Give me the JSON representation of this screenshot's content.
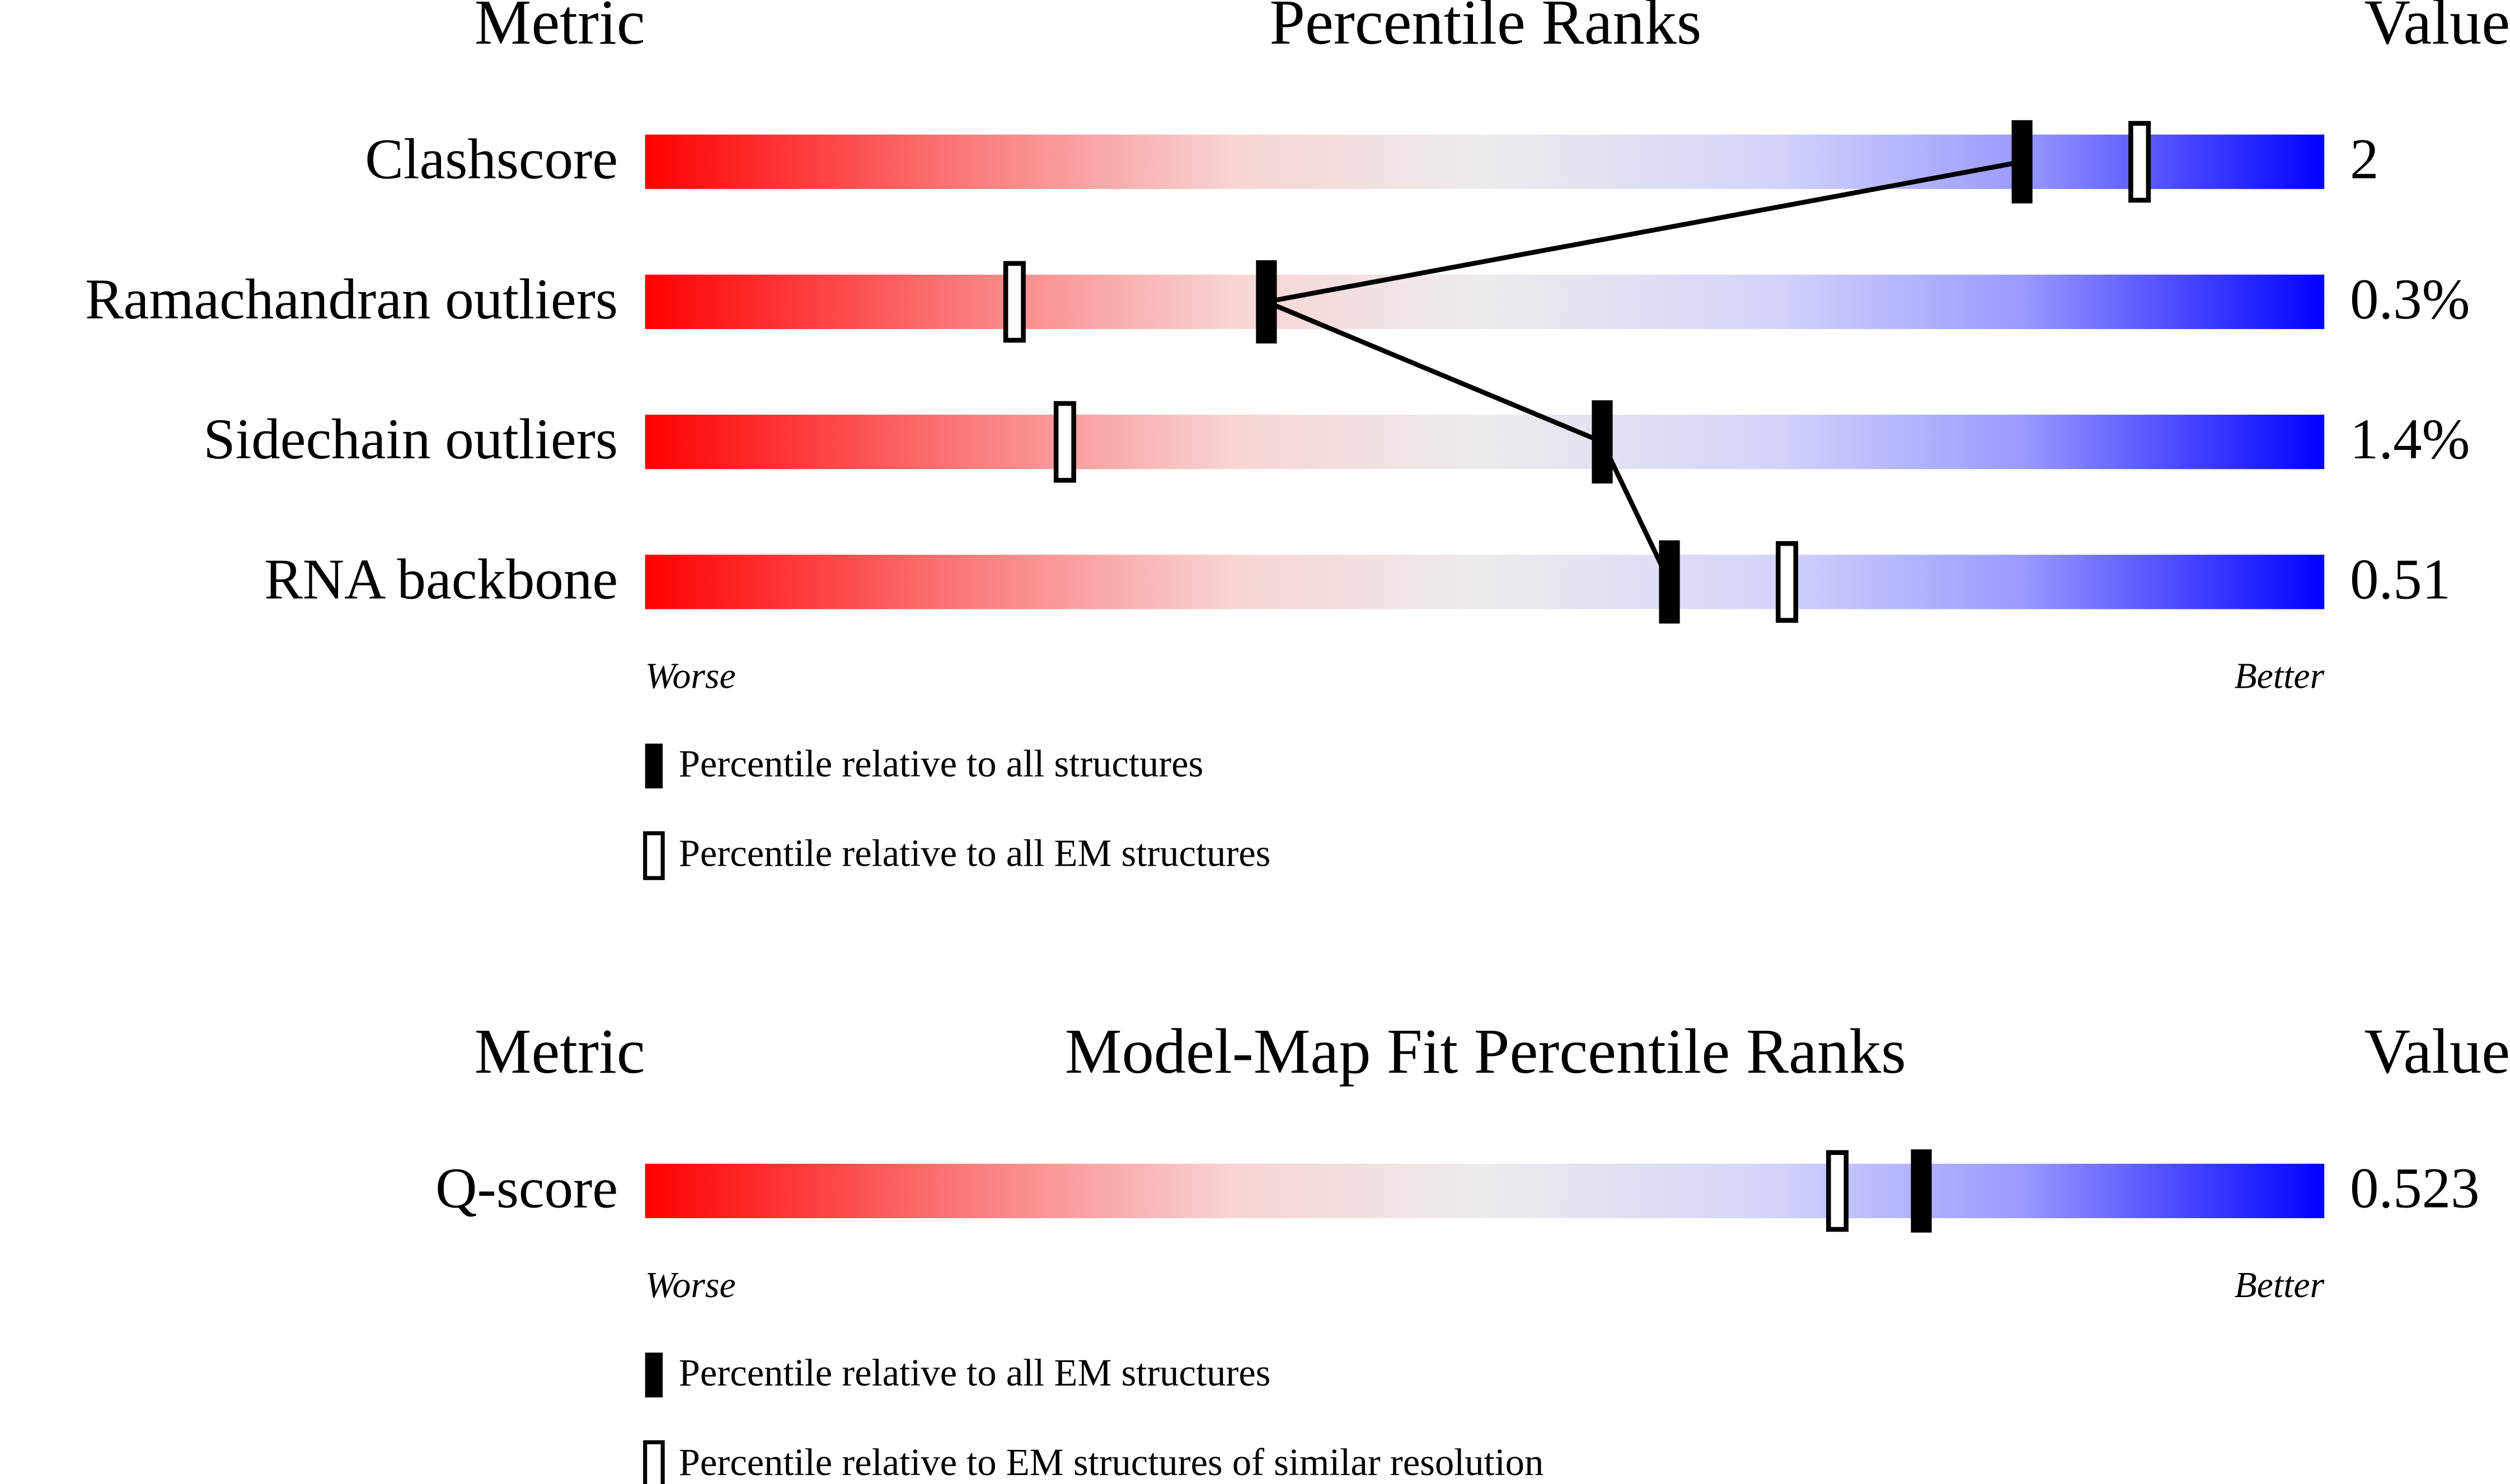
{
  "chart_data": [
    {
      "type": "percentile_slider",
      "header_metric": "Metric",
      "title": "Percentile Ranks",
      "header_value": "Value",
      "categories": [
        "Clashscore",
        "Ramachandran outliers",
        "Sidechain outliers",
        "RNA backbone"
      ],
      "metric_values": [
        "2",
        "0.3%",
        "1.4%",
        "0.51"
      ],
      "series": [
        {
          "name": "Percentile relative to all structures",
          "color": "#000000",
          "values": [
            82,
            37,
            57,
            61
          ]
        },
        {
          "name": "Percentile relative to all EM structures",
          "color": "#ffffff",
          "values": [
            89,
            22,
            25,
            68
          ]
        }
      ],
      "connect_first_series": true,
      "xlim": [
        0,
        100
      ],
      "worse_label": "Worse",
      "better_label": "Better"
    },
    {
      "type": "percentile_slider",
      "header_metric": "Metric",
      "title": "Model-Map Fit Percentile Ranks",
      "header_value": "Value",
      "categories": [
        "Q-score"
      ],
      "metric_values": [
        "0.523"
      ],
      "series": [
        {
          "name": "Percentile relative to all EM structures",
          "color": "#000000",
          "values": [
            76
          ]
        },
        {
          "name": "Percentile relative to EM structures of similar resolution",
          "color": "#ffffff",
          "values": [
            71
          ]
        }
      ],
      "connect_first_series": false,
      "xlim": [
        0,
        100
      ],
      "worse_label": "Worse",
      "better_label": "Better"
    }
  ]
}
